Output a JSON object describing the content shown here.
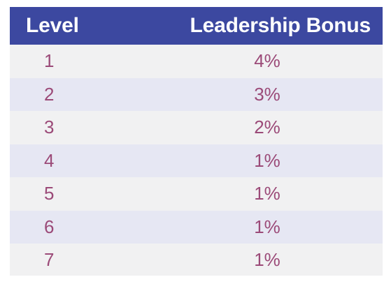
{
  "colors": {
    "header_bg": "#3c48a0",
    "row_odd_bg": "#f1f1f2",
    "row_even_bg": "#e6e7f3",
    "header_text": "#ffffff",
    "cell_text": "#9b4a78"
  },
  "table": {
    "headers": {
      "level": "Level",
      "bonus": "Leadership Bonus"
    },
    "rows": [
      {
        "level": "1",
        "bonus": "4%"
      },
      {
        "level": "2",
        "bonus": "3%"
      },
      {
        "level": "3",
        "bonus": "2%"
      },
      {
        "level": "4",
        "bonus": "1%"
      },
      {
        "level": "5",
        "bonus": "1%"
      },
      {
        "level": "6",
        "bonus": "1%"
      },
      {
        "level": "7",
        "bonus": "1%"
      }
    ]
  }
}
